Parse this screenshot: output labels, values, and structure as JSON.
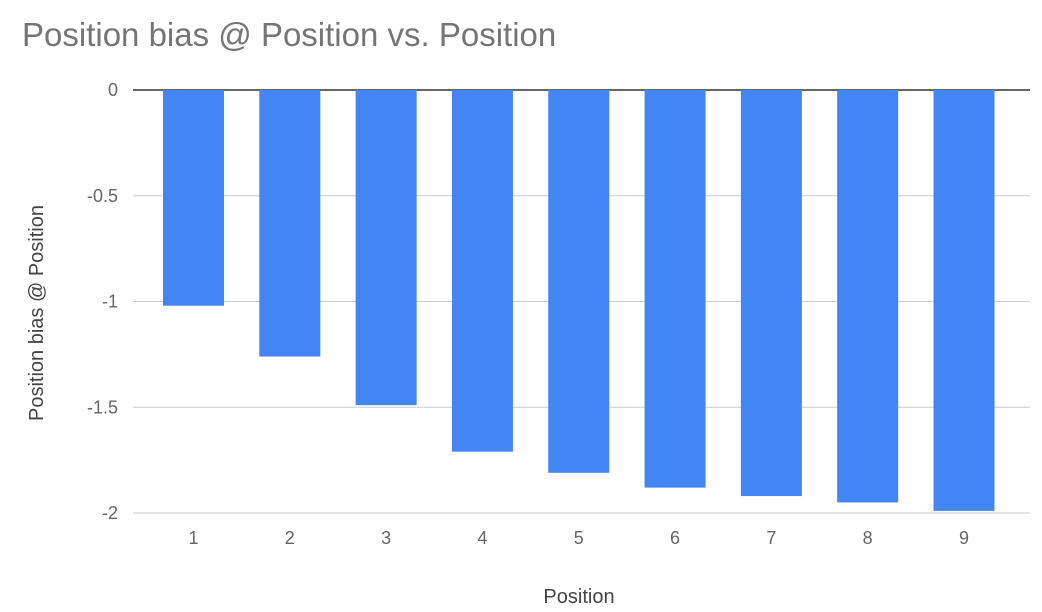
{
  "chart_data": {
    "type": "bar",
    "title": "Position bias @ Position vs. Position",
    "xlabel": "Position",
    "ylabel": "Position bias @ Position",
    "categories": [
      "1",
      "2",
      "3",
      "4",
      "5",
      "6",
      "7",
      "8",
      "9"
    ],
    "values": [
      -1.02,
      -1.26,
      -1.49,
      -1.71,
      -1.81,
      -1.88,
      -1.92,
      -1.95,
      -1.99
    ],
    "ylim": [
      -2,
      0
    ],
    "yticks": [
      "0",
      "-0.5",
      "-1",
      "-1.5",
      "-2"
    ],
    "ytick_values": [
      0,
      -0.5,
      -1,
      -1.5,
      -2
    ],
    "grid": true,
    "legend": "none",
    "colors": {
      "bar": "#4285f4",
      "grid": "#cccccc",
      "zero_line": "#333333",
      "title": "#757575",
      "axis_text": "#444444",
      "tick_text": "#666666"
    }
  }
}
